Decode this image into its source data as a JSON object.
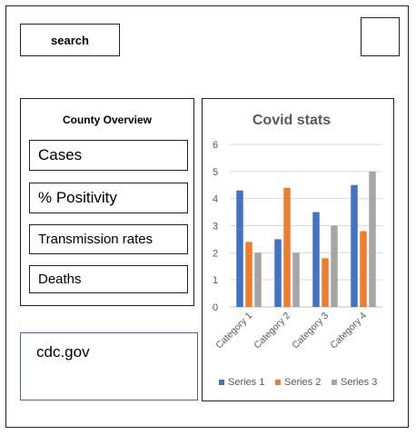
{
  "header": {
    "search_label": "search"
  },
  "overview": {
    "title": "County Overview",
    "items": [
      {
        "label": "Cases"
      },
      {
        "label": "% Positivity"
      },
      {
        "label": "Transmission rates"
      },
      {
        "label": "Deaths"
      }
    ]
  },
  "link": {
    "text": "cdc.gov"
  },
  "chart_data": {
    "type": "bar",
    "title": "Covid stats",
    "categories": [
      "Category 1",
      "Category 2",
      "Category 3",
      "Category 4"
    ],
    "series": [
      {
        "name": "Series 1",
        "values": [
          4.3,
          2.5,
          3.5,
          4.5
        ],
        "color": "#4472C4"
      },
      {
        "name": "Series 2",
        "values": [
          2.4,
          4.4,
          1.8,
          2.8
        ],
        "color": "#ED7D31"
      },
      {
        "name": "Series 3",
        "values": [
          2.0,
          2.0,
          3.0,
          5.0
        ],
        "color": "#A5A5A5"
      }
    ],
    "yticks": [
      "0",
      "1",
      "2",
      "3",
      "4",
      "5",
      "6"
    ],
    "ylim": [
      0,
      6
    ],
    "grid": true,
    "legend": "bottom"
  }
}
